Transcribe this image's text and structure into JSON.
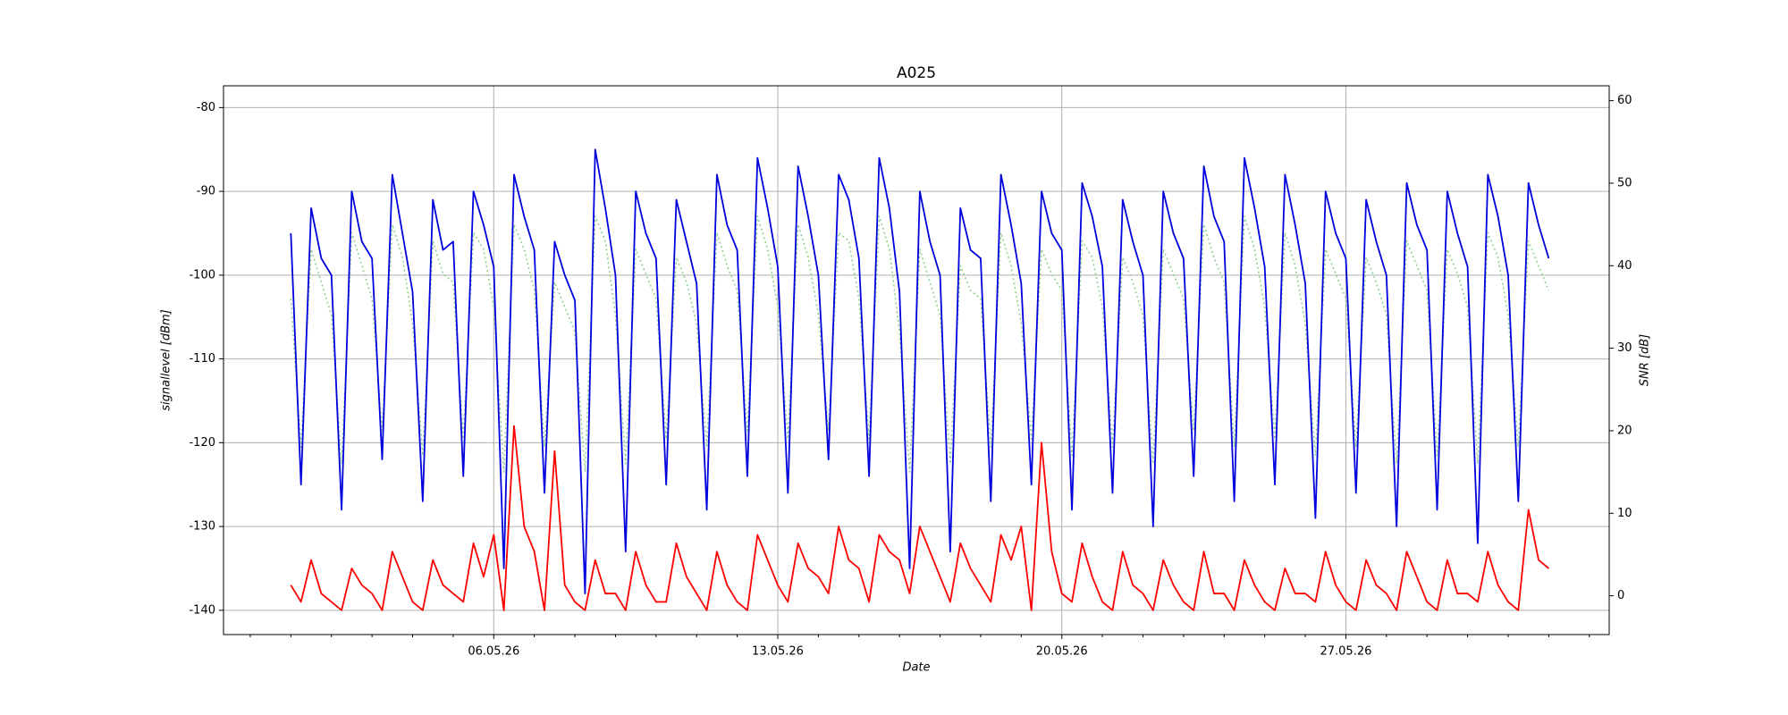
{
  "chart_data": {
    "type": "line",
    "title": "A025",
    "xlabel": "Date",
    "ylabel": "signallevel [dBm]",
    "y2label": "SNR [dB]",
    "xlim": [
      -0.66,
      33.49
    ],
    "xticks": [
      {
        "value": 6,
        "label": "06.05.26"
      },
      {
        "value": 13,
        "label": "13.05.26"
      },
      {
        "value": 20,
        "label": "20.05.26"
      },
      {
        "value": 27,
        "label": "27.05.26"
      }
    ],
    "xminorticks": [
      0,
      1,
      2,
      3,
      4,
      5,
      7,
      8,
      9,
      10,
      11,
      12,
      14,
      15,
      16,
      17,
      18,
      19,
      21,
      22,
      23,
      24,
      25,
      26,
      28,
      29,
      30,
      31,
      32,
      33
    ],
    "ylim": [
      -142.9,
      -77.4
    ],
    "yticks": [
      -140,
      -130,
      -120,
      -110,
      -100,
      -90,
      -80
    ],
    "y2lim": [
      -4.7,
      61.8
    ],
    "y2ticks": [
      0,
      10,
      20,
      30,
      40,
      50,
      60
    ],
    "grid": true,
    "x": [
      1,
      1.25,
      1.5,
      1.75,
      2,
      2.25,
      2.5,
      2.75,
      3,
      3.25,
      3.5,
      3.75,
      4,
      4.25,
      4.5,
      4.75,
      5,
      5.25,
      5.5,
      5.75,
      6,
      6.25,
      6.5,
      6.75,
      7,
      7.25,
      7.5,
      7.75,
      8,
      8.25,
      8.5,
      8.75,
      9,
      9.25,
      9.5,
      9.75,
      10,
      10.25,
      10.5,
      10.75,
      11,
      11.25,
      11.5,
      11.75,
      12,
      12.25,
      12.5,
      12.75,
      13,
      13.25,
      13.5,
      13.75,
      14,
      14.25,
      14.5,
      14.75,
      15,
      15.25,
      15.5,
      15.75,
      16,
      16.25,
      16.5,
      16.75,
      17,
      17.25,
      17.5,
      17.75,
      18,
      18.25,
      18.5,
      18.75,
      19,
      19.25,
      19.5,
      19.75,
      20,
      20.25,
      20.5,
      20.75,
      21,
      21.25,
      21.5,
      21.75,
      22,
      22.25,
      22.5,
      22.75,
      23,
      23.25,
      23.5,
      23.75,
      24,
      24.25,
      24.5,
      24.75,
      25,
      25.25,
      25.5,
      25.75,
      26,
      26.25,
      26.5,
      26.75,
      27,
      27.25,
      27.5,
      27.75,
      28,
      28.25,
      28.5,
      28.75,
      29,
      29.25,
      29.5,
      29.75,
      30,
      30.25,
      30.5,
      30.75,
      31,
      31.25,
      31.5,
      31.75,
      32
    ],
    "series": [
      {
        "color": "#90d090",
        "style": "dotted",
        "axis": "y2",
        "values": [
          36,
          18,
          42,
          38,
          34,
          16,
          44,
          40,
          36,
          20,
          45,
          41,
          33,
          17,
          43,
          39,
          38,
          19,
          44,
          42,
          35,
          15,
          45,
          42,
          37,
          18,
          38,
          35,
          32,
          15,
          46,
          43,
          34,
          16,
          42,
          39,
          36,
          19,
          41,
          38,
          33,
          18,
          44,
          40,
          37,
          20,
          46,
          42,
          35,
          19,
          45,
          41,
          34,
          20,
          44,
          43,
          36,
          19,
          46,
          42,
          32,
          15,
          42,
          38,
          34,
          16,
          40,
          37,
          36,
          18,
          44,
          40,
          33,
          19,
          42,
          39,
          37,
          17,
          43,
          41,
          35,
          18,
          41,
          38,
          34,
          16,
          42,
          39,
          36,
          20,
          45,
          41,
          38,
          18,
          46,
          42,
          35,
          19,
          44,
          40,
          33,
          17,
          42,
          39,
          36,
          18,
          41,
          38,
          34,
          16,
          43,
          40,
          37,
          17,
          42,
          39,
          35,
          16,
          44,
          41,
          34,
          18,
          43,
          40,
          37
        ]
      },
      {
        "color": "#0000dd",
        "style": "solid",
        "values": [
          -95,
          -125,
          -92,
          -98,
          -100,
          -128,
          -90,
          -96,
          -98,
          -122,
          -88,
          -95,
          -102,
          -127,
          -91,
          -97,
          -96,
          -124,
          -90,
          -94,
          -99,
          -135,
          -88,
          -93,
          -97,
          -126,
          -96,
          -100,
          -103,
          -138,
          -85,
          -92,
          -100,
          -133,
          -90,
          -95,
          -98,
          -125,
          -91,
          -96,
          -101,
          -128,
          -88,
          -94,
          -97,
          -124,
          -86,
          -92,
          -99,
          -126,
          -87,
          -93,
          -100,
          -122,
          -88,
          -91,
          -98,
          -124,
          -86,
          -92,
          -102,
          -135,
          -90,
          -96,
          -100,
          -133,
          -92,
          -97,
          -98,
          -127,
          -88,
          -94,
          -101,
          -125,
          -90,
          -95,
          -97,
          -128,
          -89,
          -93,
          -99,
          -126,
          -91,
          -96,
          -100,
          -130,
          -90,
          -95,
          -98,
          -124,
          -87,
          -93,
          -96,
          -127,
          -86,
          -92,
          -99,
          -125,
          -88,
          -94,
          -101,
          -129,
          -90,
          -95,
          -98,
          -126,
          -91,
          -96,
          -100,
          -130,
          -89,
          -94,
          -97,
          -128,
          -90,
          -95,
          -99,
          -132,
          -88,
          -93,
          -100,
          -127,
          -89,
          -94,
          -98
        ]
      },
      {
        "color": "#ff0000",
        "style": "solid",
        "values": [
          -137,
          -139,
          -134,
          -138,
          -139,
          -140,
          -135,
          -137,
          -138,
          -140,
          -133,
          -136,
          -139,
          -140,
          -134,
          -137,
          -138,
          -139,
          -132,
          -136,
          -131,
          -140,
          -118,
          -130,
          -133,
          -140,
          -121,
          -137,
          -139,
          -140,
          -134,
          -138,
          -138,
          -140,
          -133,
          -137,
          -139,
          -139,
          -132,
          -136,
          -138,
          -140,
          -133,
          -137,
          -139,
          -140,
          -131,
          -134,
          -137,
          -139,
          -132,
          -135,
          -136,
          -138,
          -130,
          -134,
          -135,
          -139,
          -131,
          -133,
          -134,
          -138,
          -130,
          -133,
          -136,
          -139,
          -132,
          -135,
          -137,
          -139,
          -131,
          -134,
          -130,
          -140,
          -120,
          -133,
          -138,
          -139,
          -132,
          -136,
          -139,
          -140,
          -133,
          -137,
          -138,
          -140,
          -134,
          -137,
          -139,
          -140,
          -133,
          -138,
          -138,
          -140,
          -134,
          -137,
          -139,
          -140,
          -135,
          -138,
          -138,
          -139,
          -133,
          -137,
          -139,
          -140,
          -134,
          -137,
          -138,
          -140,
          -133,
          -136,
          -139,
          -140,
          -134,
          -138,
          -138,
          -139,
          -133,
          -137,
          -139,
          -140,
          -128,
          -134,
          -135
        ]
      }
    ]
  }
}
